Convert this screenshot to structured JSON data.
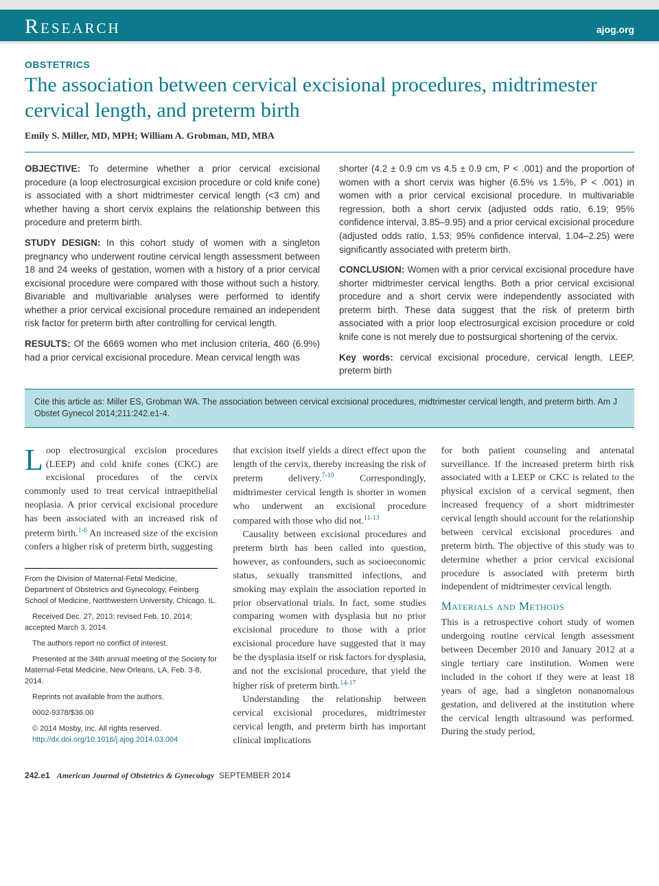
{
  "header": {
    "section": "Research",
    "site": "ajog.org"
  },
  "article": {
    "category": "OBSTETRICS",
    "title": "The association between cervical excisional procedures, midtrimester cervical length, and preterm birth",
    "authors": "Emily S. Miller, MD, MPH; William A. Grobman, MD, MBA"
  },
  "abstract": {
    "objective_label": "OBJECTIVE:",
    "objective": "To determine whether a prior cervical excisional procedure (a loop electrosurgical excision procedure or cold knife cone) is associated with a short midtrimester cervical length (<3 cm) and whether having a short cervix explains the relationship between this procedure and preterm birth.",
    "design_label": "STUDY DESIGN:",
    "design": "In this cohort study of women with a singleton pregnancy who underwent routine cervical length assessment between 18 and 24 weeks of gestation, women with a history of a prior cervical excisional procedure were compared with those without such a history. Bivariable and multivariable analyses were performed to identify whether a prior cervical excisional procedure remained an independent risk factor for preterm birth after controlling for cervical length.",
    "results_label": "RESULTS:",
    "results_a": "Of the 6669 women who met inclusion criteria, 460 (6.9%) had a prior cervical excisional procedure. Mean cervical length was",
    "results_b": "shorter (4.2 ± 0.9 cm vs 4.5 ± 0.9 cm, P < .001) and the proportion of women with a short cervix was higher (6.5% vs 1.5%, P < .001) in women with a prior cervical excisional procedure. In multivariable regression, both a short cervix (adjusted odds ratio, 6.19; 95% confidence interval, 3.85–9.95) and a prior cervical excisional procedure (adjusted odds ratio, 1.53; 95% confidence interval, 1.04–2.25) were significantly associated with preterm birth.",
    "conclusion_label": "CONCLUSION:",
    "conclusion": "Women with a prior cervical excisional procedure have shorter midtrimester cervical lengths. Both a prior cervical excisional procedure and a short cervix were independently associated with preterm birth. These data suggest that the risk of preterm birth associated with a prior loop electrosurgical excision procedure or cold knife cone is not merely due to postsurgical shortening of the cervix.",
    "keywords_label": "Key words:",
    "keywords": "cervical excisional procedure, cervical length, LEEP, preterm birth"
  },
  "cite": "Cite this article as: Miller ES, Grobman WA. The association between cervical excisional procedures, midtrimester cervical length, and preterm birth. Am J Obstet Gynecol 2014;211:242.e1-4.",
  "body": {
    "col1_p1_a": "oop electrosurgical excision procedures (LEEP) and cold knife cones (CKC) are excisional procedures of the cervix commonly used to treat cervical intraepithelial neoplasia. A prior cervical excisional procedure has been associated with an increased risk of preterm birth.",
    "col1_p1_b": " An increased size of the excision confers a higher risk of preterm birth, suggesting",
    "col2_p1_a": "that excision itself yields a direct effect upon the length of the cervix, thereby increasing the risk of preterm delivery.",
    "col2_p1_b": " Correspondingly, midtrimester cervical length is shorter in women who underwent an excisional procedure compared with those who did not.",
    "col2_p2_a": "Causality between excisional procedures and preterm birth has been called into question, however, as confounders, such as socioeconomic status, sexually transmitted infections, and smoking may explain the association reported in prior observational trials. In fact, some studies comparing women with dysplasia but no prior excisional procedure to those with a prior excisional procedure have suggested that it may be the dysplasia itself or risk factors for dysplasia, and not the excisional procedure, that yield the higher risk of preterm birth.",
    "col2_p3": "Understanding the relationship between cervical excisional procedures, midtrimester cervical length, and preterm birth has important clinical implications",
    "col3_p1": "for both patient counseling and antenatal surveillance. If the increased preterm birth risk associated with a LEEP or CKC is related to the physical excision of a cervical segment, then increased frequency of a short midtrimester cervical length should account for the relationship between cervical excisional procedures and preterm birth. The objective of this study was to determine whether a prior cervical excisional procedure is associated with preterm birth independent of midtrimester cervical length.",
    "mm_heading": "Materials and Methods",
    "col3_p2": "This is a retrospective cohort study of women undergoing routine cervical length assessment between December 2010 and January 2012 at a single tertiary care institution. Women were included in the cohort if they were at least 18 years of age, had a singleton nonanomalous gestation, and delivered at the institution where the cervical length ultrasound was performed. During the study period,"
  },
  "refs": {
    "r1": "1-6",
    "r2": "7-10",
    "r3": "11-13",
    "r4": "14-17"
  },
  "footnotes": {
    "affil": "From the Division of Maternal-Fetal Medicine, Department of Obstetrics and Gynecology, Feinberg School of Medicine, Northwestern University, Chicago, IL.",
    "dates": "Received Dec. 27, 2013; revised Feb. 10, 2014; accepted March 3, 2014.",
    "coi": "The authors report no conflict of interest.",
    "presented": "Presented at the 34th annual meeting of the Society for Maternal-Fetal Medicine, New Orleans, LA, Feb. 3-8, 2014.",
    "reprints": "Reprints not available from the authors.",
    "price": "0002-9378/$36.00",
    "copyright": "© 2014 Mosby, Inc. All rights reserved.",
    "doi": "http://dx.doi.org/10.1016/j.ajog.2014.03.004"
  },
  "footer": {
    "page": "242.e1",
    "journal": "American Journal of Obstetrics & Gynecology",
    "issue": "SEPTEMBER 2014"
  },
  "colors": {
    "teal": "#0c7a8c",
    "citebg": "#b8e0e6"
  }
}
